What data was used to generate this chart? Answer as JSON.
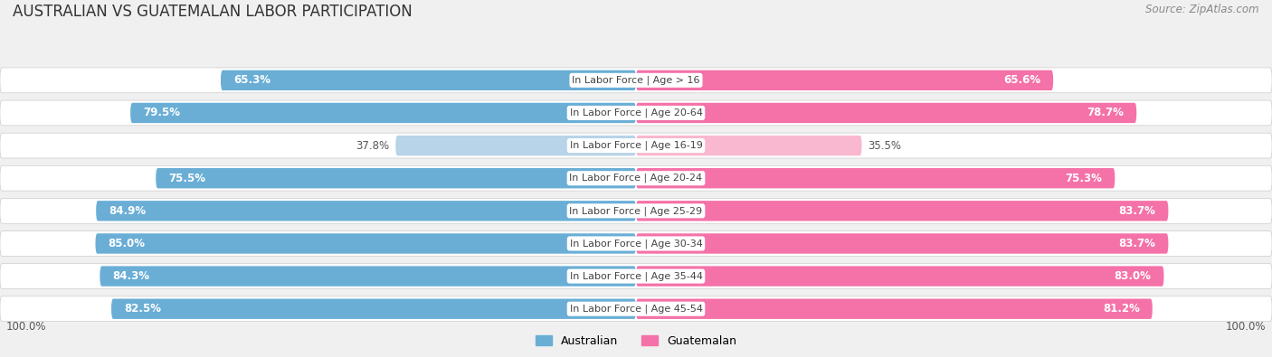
{
  "title": "AUSTRALIAN VS GUATEMALAN LABOR PARTICIPATION",
  "source": "Source: ZipAtlas.com",
  "categories": [
    "In Labor Force | Age > 16",
    "In Labor Force | Age 20-64",
    "In Labor Force | Age 16-19",
    "In Labor Force | Age 20-24",
    "In Labor Force | Age 25-29",
    "In Labor Force | Age 30-34",
    "In Labor Force | Age 35-44",
    "In Labor Force | Age 45-54"
  ],
  "australian_values": [
    65.3,
    79.5,
    37.8,
    75.5,
    84.9,
    85.0,
    84.3,
    82.5
  ],
  "guatemalan_values": [
    65.6,
    78.7,
    35.5,
    75.3,
    83.7,
    83.7,
    83.0,
    81.2
  ],
  "australian_color": "#6aaed6",
  "australian_color_light": "#b8d4e8",
  "guatemalan_color": "#f472a8",
  "guatemalan_color_light": "#f9b8d0",
  "bar_height": 0.62,
  "bg_color": "#f0f0f0",
  "row_bg_color": "#e2e2e2",
  "row_bg_light": "#ffffff",
  "title_fontsize": 12,
  "source_fontsize": 8.5,
  "value_fontsize": 8.5,
  "category_fontsize": 8,
  "legend_fontsize": 9,
  "axis_label": "100.0%"
}
